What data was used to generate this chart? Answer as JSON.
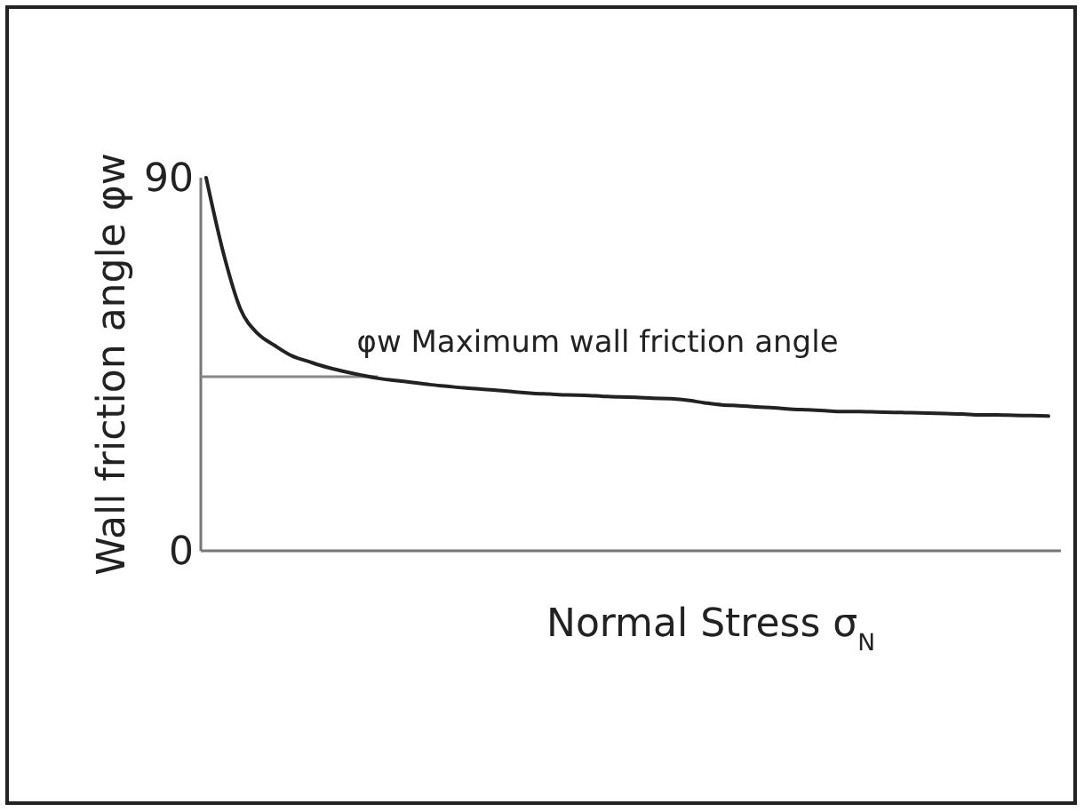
{
  "chart_data": {
    "type": "line",
    "xlabel": "Normal Stress σ$_{N}$",
    "ylabel": "Wall friction angle φw",
    "categories": [
      null,
      null,
      null,
      null,
      null,
      null,
      null,
      null,
      null,
      null,
      null,
      null,
      null,
      null,
      null,
      null,
      null,
      null,
      null,
      null,
      null,
      null,
      null,
      null,
      null,
      null,
      null,
      null,
      null,
      null,
      null,
      null,
      null,
      null,
      null,
      null,
      null,
      null,
      null,
      null,
      null,
      null,
      null,
      null,
      null,
      null,
      null,
      null,
      null,
      null
    ],
    "series": [
      {
        "color": "#222222",
        "values": [
          90,
          71.9,
          58.3,
          52.4,
          49.5,
          47.0,
          45.6,
          44.3,
          43.3,
          42.4,
          41.6,
          41.1,
          40.6,
          40.1,
          39.7,
          39.3,
          39.0,
          38.7,
          38.3,
          38.0,
          37.8,
          37.6,
          37.5,
          37.3,
          37.1,
          37.0,
          36.8,
          36.7,
          36.3,
          35.7,
          35.2,
          35.0,
          34.7,
          34.5,
          34.2,
          34.0,
          33.8,
          33.6,
          33.6,
          33.5,
          33.4,
          33.3,
          33.2,
          33.1,
          33.0,
          32.8,
          32.8,
          32.7,
          32.6,
          32.5
        ]
      }
    ],
    "ylim": [
      0,
      90
    ],
    "yticks": [
      0,
      90
    ],
    "marker": "none",
    "line_style": "solid",
    "ref_lines": [
      {
        "axis": "y",
        "value": 42,
        "label": "φw Maximum wall friction angle",
        "color": "#888888"
      }
    ]
  }
}
